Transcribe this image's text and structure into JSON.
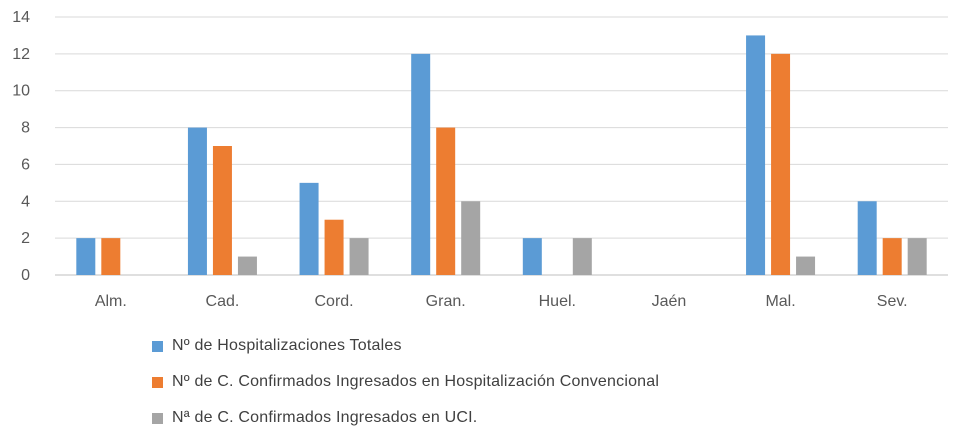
{
  "chart_data": {
    "type": "bar",
    "categories": [
      "Alm.",
      "Cad.",
      "Cord.",
      "Gran.",
      "Huel.",
      "Jaén",
      "Mal.",
      "Sev."
    ],
    "series": [
      {
        "name": "Nº de Hospitalizaciones Totales",
        "color": "#5B9BD5",
        "values": [
          2,
          8,
          5,
          12,
          2,
          0,
          13,
          4
        ]
      },
      {
        "name": "Nº de C. Confirmados Ingresados en Hospitalización Convencional",
        "color": "#ED7D31",
        "values": [
          2,
          7,
          3,
          8,
          0,
          0,
          12,
          2
        ]
      },
      {
        "name": "Nª de C. Confirmados Ingresados en UCI.",
        "color": "#A5A5A5",
        "values": [
          0,
          1,
          2,
          4,
          2,
          0,
          1,
          2
        ]
      }
    ],
    "yticks": [
      "0",
      "2",
      "4",
      "6",
      "8",
      "10",
      "12",
      "14"
    ],
    "ylim": [
      0,
      14
    ],
    "grid": true,
    "legend_position": "bottom"
  }
}
